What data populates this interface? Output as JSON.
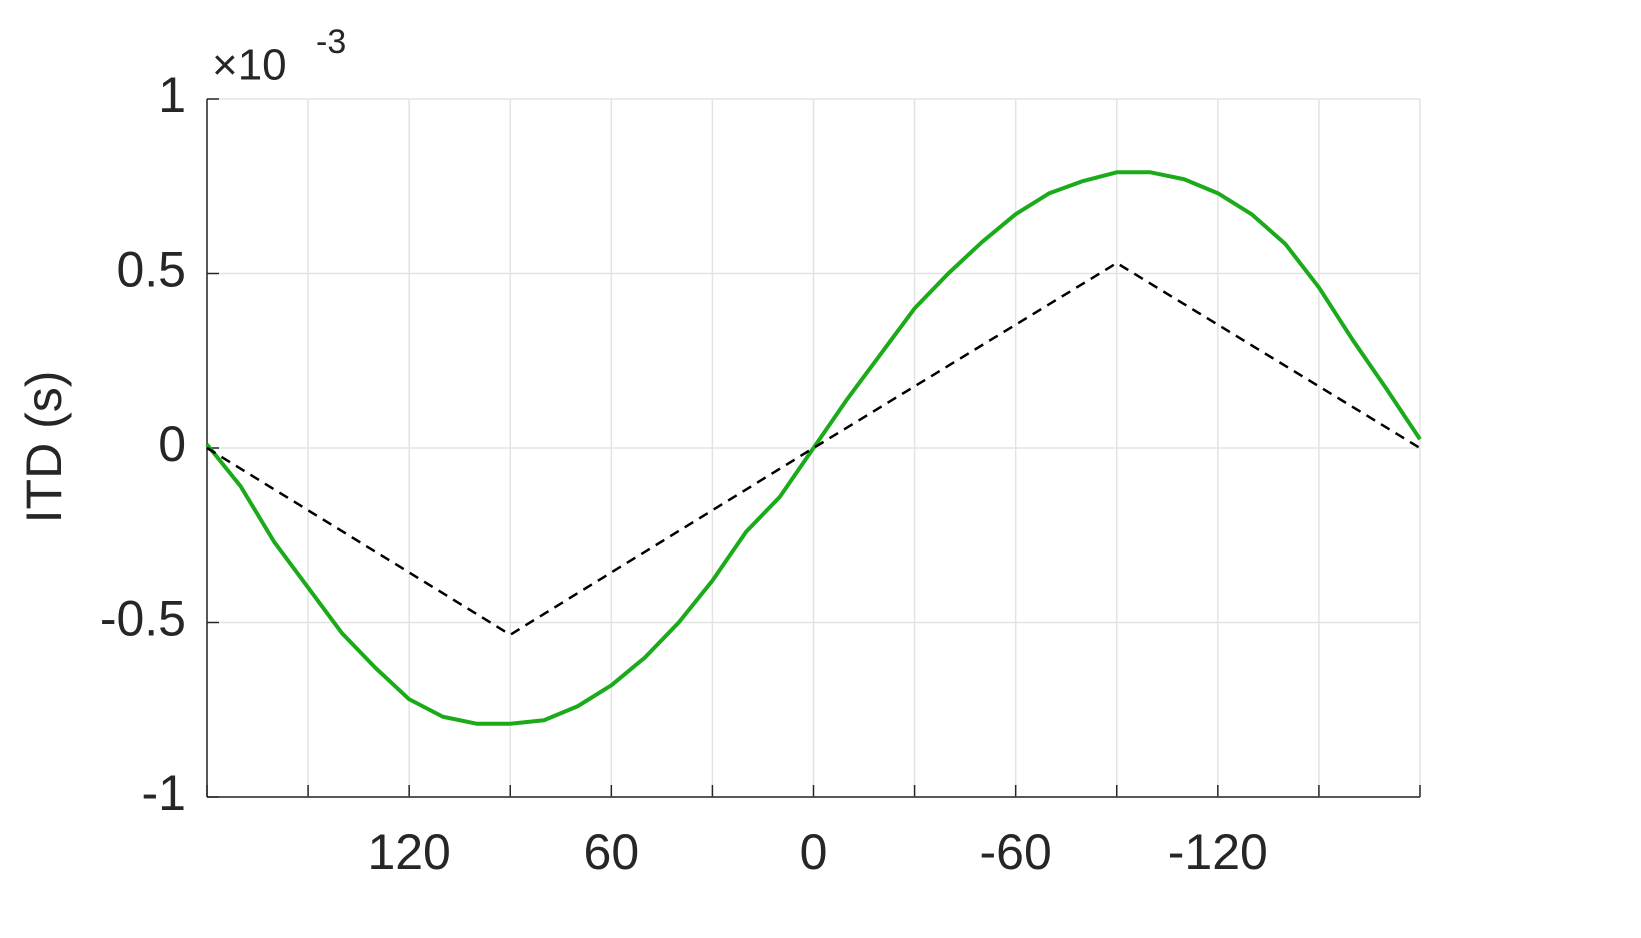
{
  "chart_data": {
    "type": "line",
    "y_label": "ITD (s)",
    "y_multiplier": {
      "base": "×10",
      "exponent": "-3"
    },
    "xlim": [
      180,
      -180
    ],
    "xticks": [
      120,
      60,
      0,
      -60,
      -120
    ],
    "minor_xticks": [
      180,
      150,
      90,
      30,
      -30,
      -90,
      -150,
      -180
    ],
    "ylim": [
      -1,
      1
    ],
    "yticks": [
      -1,
      -0.5,
      0,
      0.5,
      1
    ],
    "grid": true,
    "series": [
      {
        "color": "#1aaa1a",
        "dash": "solid",
        "x": [
          180,
          170,
          160,
          150,
          140,
          130,
          120,
          110,
          100,
          90,
          80,
          70,
          60,
          50,
          40,
          30,
          20,
          10,
          0,
          -10,
          -20,
          -30,
          -40,
          -50,
          -60,
          -70,
          -80,
          -90,
          -100,
          -110,
          -120,
          -130,
          -140,
          -150,
          -160,
          -170,
          -180
        ],
        "values": [
          0.01,
          -0.11,
          -0.27,
          -0.4,
          -0.53,
          -0.63,
          -0.72,
          -0.77,
          -0.79,
          -0.79,
          -0.78,
          -0.74,
          -0.68,
          -0.6,
          -0.5,
          -0.38,
          -0.24,
          -0.14,
          0.0,
          0.14,
          0.27,
          0.4,
          0.5,
          0.59,
          0.67,
          0.73,
          0.765,
          0.79,
          0.79,
          0.77,
          0.73,
          0.67,
          0.585,
          0.46,
          0.31,
          0.17,
          0.025
        ]
      },
      {
        "color": "#000000",
        "dash": "dashed",
        "x": [
          180,
          90,
          0,
          -90,
          -180
        ],
        "values": [
          0,
          -0.535,
          0,
          0.53,
          0
        ]
      }
    ]
  }
}
